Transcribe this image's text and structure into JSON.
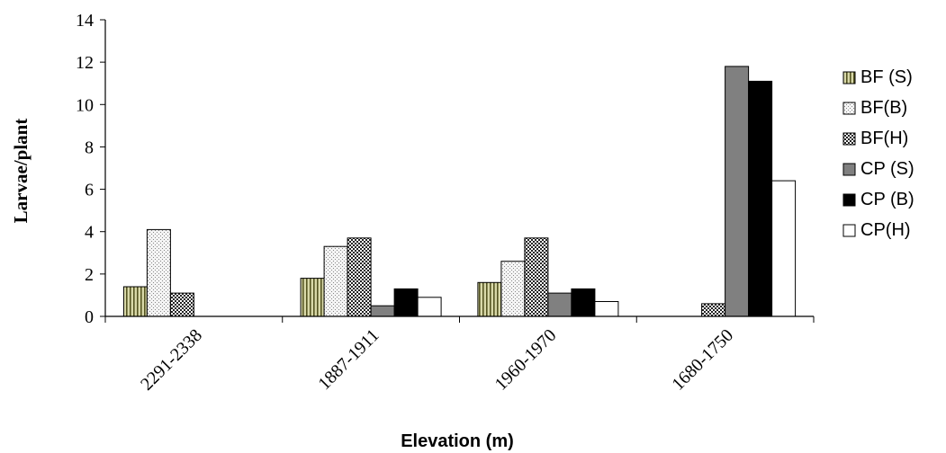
{
  "chart_data": {
    "type": "bar",
    "title": "",
    "xlabel": "Elevation (m)",
    "ylabel": "Larvae/plant",
    "ylim": [
      0,
      14
    ],
    "yticks": [
      "0",
      "2",
      "4",
      "6",
      "8",
      "10",
      "12",
      "14"
    ],
    "categories": [
      "2291-2338",
      "1887-1911",
      "1960-1970",
      "1680-1750"
    ],
    "legend_position": "right",
    "grid": false,
    "series": [
      {
        "name": "BF (S)",
        "pattern": "vertical-stripes",
        "color": "#c8c890",
        "values": [
          1.4,
          1.8,
          1.6,
          0
        ]
      },
      {
        "name": "BF(B)",
        "pattern": "fine-dots",
        "color": "#eeeeee",
        "values": [
          4.1,
          3.3,
          2.6,
          0
        ]
      },
      {
        "name": "BF(H)",
        "pattern": "checker-dots",
        "color": "#ffffff",
        "values": [
          1.1,
          3.7,
          3.7,
          0.6
        ]
      },
      {
        "name": "CP (S)",
        "pattern": "solid",
        "color": "#808080",
        "values": [
          0,
          0.5,
          1.1,
          11.8
        ]
      },
      {
        "name": "CP (B)",
        "pattern": "solid",
        "color": "#000000",
        "values": [
          0,
          1.3,
          1.3,
          11.1
        ]
      },
      {
        "name": "CP(H)",
        "pattern": "solid",
        "color": "#ffffff",
        "values": [
          0,
          0.9,
          0.7,
          6.4
        ]
      }
    ]
  }
}
